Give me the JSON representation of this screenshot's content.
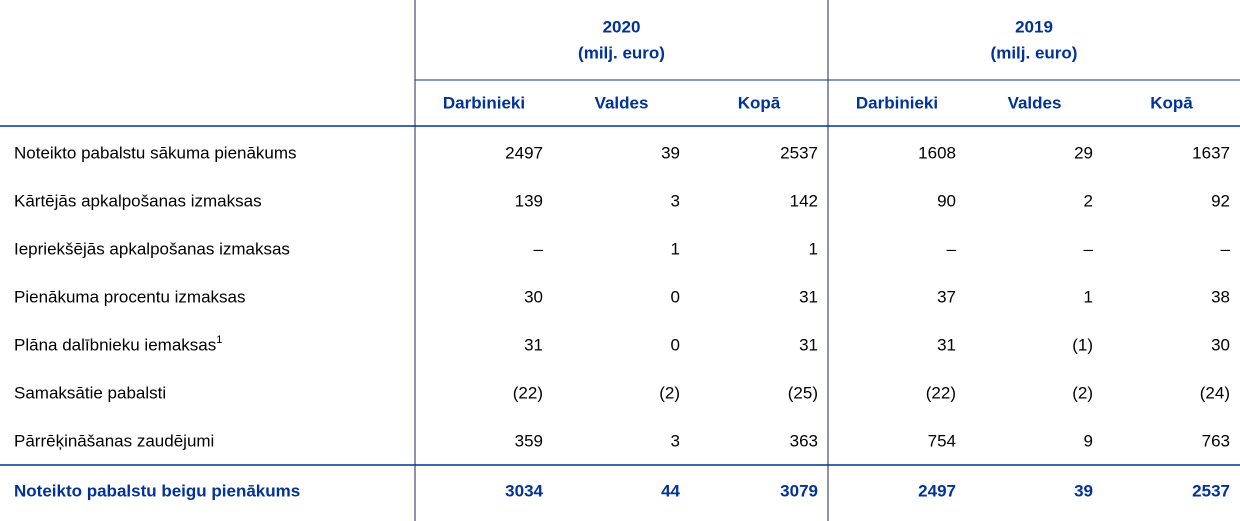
{
  "table": {
    "year_headers": [
      {
        "year": "2020",
        "unit": "(milj. euro)"
      },
      {
        "year": "2019",
        "unit": "(milj. euro)"
      }
    ],
    "column_headers": [
      "Darbinieki",
      "Valdes",
      "Kopā",
      "Darbinieki",
      "Valdes",
      "Kopā"
    ],
    "rows": [
      {
        "label": "Noteikto pabalstu sākuma pienākums",
        "cells": [
          "2497",
          "39",
          "2537",
          "1608",
          "29",
          "1637"
        ]
      },
      {
        "label": "Kārtējās apkalpošanas izmaksas",
        "cells": [
          "139",
          "3",
          "142",
          "90",
          "2",
          "92"
        ]
      },
      {
        "label": "Iepriekšējās apkalpošanas izmaksas",
        "cells": [
          "–",
          "1",
          "1",
          "–",
          "–",
          "–"
        ]
      },
      {
        "label": "Pienākuma procentu izmaksas",
        "cells": [
          "30",
          "0",
          "31",
          "37",
          "1",
          "38"
        ]
      },
      {
        "label": "Plāna dalībnieku iemaksas",
        "footnote": "1",
        "cells": [
          "31",
          "0",
          "31",
          "31",
          "(1)",
          "30"
        ]
      },
      {
        "label": "Samaksātie pabalsti",
        "cells": [
          "(22)",
          "(2)",
          "(25)",
          "(22)",
          "(2)",
          "(24)"
        ]
      },
      {
        "label": "Pārrēķināšanas zaudējumi",
        "cells": [
          "359",
          "3",
          "363",
          "754",
          "9",
          "763"
        ]
      }
    ],
    "total": {
      "label": "Noteikto pabalstu beigu pienākums",
      "cells": [
        "3034",
        "44",
        "3079",
        "2497",
        "39",
        "2537"
      ]
    }
  }
}
